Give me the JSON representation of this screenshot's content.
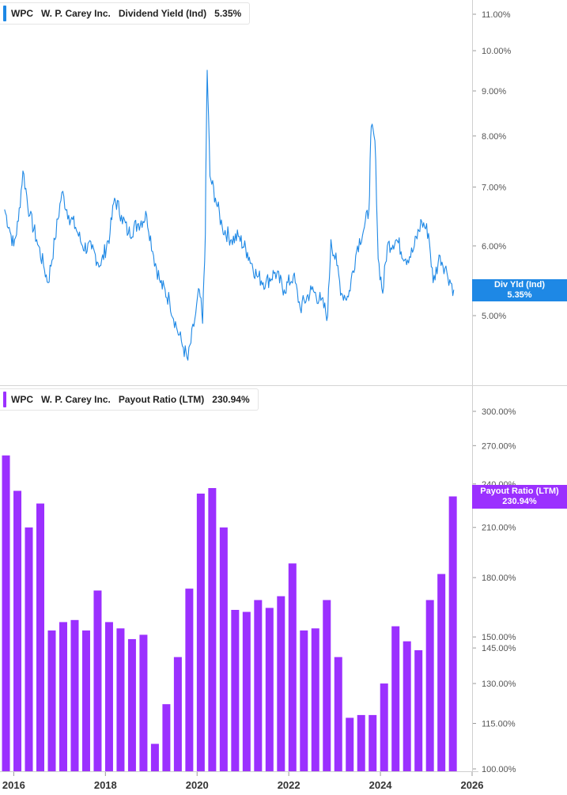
{
  "top_legend": {
    "ticker": "WPC",
    "company": "W. P. Carey Inc.",
    "metric": "Dividend Yield (Ind)",
    "value": "5.35%"
  },
  "bottom_legend": {
    "ticker": "WPC",
    "company": "W. P. Carey Inc.",
    "metric": "Payout Ratio (LTM)",
    "value": "230.94%"
  },
  "top_badge": {
    "label": "Div Yld (Ind)",
    "value": "5.35%"
  },
  "bottom_badge": {
    "label": "Payout Ratio (LTM)",
    "value": "230.94%"
  },
  "colors": {
    "yield_line": "#1e88e5",
    "payout_bar": "#9b30ff",
    "axis": "#9a9a9a"
  },
  "chart_data": [
    {
      "type": "line",
      "title": "WPC W. P. Carey Inc. Dividend Yield (Ind)",
      "scale": "log",
      "ylim": [
        4.3,
        11.6
      ],
      "yticks": [
        {
          "v": 11,
          "label": "11.00%"
        },
        {
          "v": 10,
          "label": "10.00%"
        },
        {
          "v": 9,
          "label": "9.00%"
        },
        {
          "v": 8,
          "label": "8.00%"
        },
        {
          "v": 7,
          "label": "7.00%"
        },
        {
          "v": 6,
          "label": "6.00%"
        },
        {
          "v": 5,
          "label": "5.00%"
        }
      ],
      "series": [
        {
          "name": "Div Yld (Ind)",
          "points": [
            [
              2015.8,
              6.6
            ],
            [
              2015.9,
              6.3
            ],
            [
              2016.0,
              6.0
            ],
            [
              2016.1,
              6.4
            ],
            [
              2016.2,
              7.3
            ],
            [
              2016.35,
              6.5
            ],
            [
              2016.5,
              6.1
            ],
            [
              2016.65,
              5.7
            ],
            [
              2016.75,
              5.45
            ],
            [
              2016.9,
              6.1
            ],
            [
              2017.05,
              6.9
            ],
            [
              2017.2,
              6.5
            ],
            [
              2017.35,
              6.3
            ],
            [
              2017.5,
              6.0
            ],
            [
              2017.7,
              5.95
            ],
            [
              2017.9,
              5.7
            ],
            [
              2018.1,
              6.2
            ],
            [
              2018.2,
              6.8
            ],
            [
              2018.35,
              6.5
            ],
            [
              2018.5,
              6.2
            ],
            [
              2018.7,
              6.35
            ],
            [
              2018.9,
              6.5
            ],
            [
              2019.05,
              5.85
            ],
            [
              2019.2,
              5.45
            ],
            [
              2019.4,
              5.2
            ],
            [
              2019.55,
              4.85
            ],
            [
              2019.7,
              4.6
            ],
            [
              2019.8,
              4.45
            ],
            [
              2019.95,
              4.95
            ],
            [
              2020.05,
              5.35
            ],
            [
              2020.12,
              4.9
            ],
            [
              2020.18,
              6.2
            ],
            [
              2020.22,
              9.5
            ],
            [
              2020.28,
              7.2
            ],
            [
              2020.4,
              6.8
            ],
            [
              2020.55,
              6.3
            ],
            [
              2020.75,
              6.1
            ],
            [
              2020.9,
              6.15
            ],
            [
              2021.1,
              5.9
            ],
            [
              2021.3,
              5.55
            ],
            [
              2021.5,
              5.45
            ],
            [
              2021.7,
              5.6
            ],
            [
              2021.9,
              5.35
            ],
            [
              2022.1,
              5.55
            ],
            [
              2022.25,
              5.1
            ],
            [
              2022.5,
              5.35
            ],
            [
              2022.7,
              5.2
            ],
            [
              2022.85,
              5.0
            ],
            [
              2022.92,
              6.1
            ],
            [
              2023.05,
              5.7
            ],
            [
              2023.15,
              5.3
            ],
            [
              2023.3,
              5.25
            ],
            [
              2023.5,
              6.0
            ],
            [
              2023.65,
              6.3
            ],
            [
              2023.75,
              6.6
            ],
            [
              2023.8,
              8.2
            ],
            [
              2023.88,
              7.9
            ],
            [
              2023.95,
              5.8
            ],
            [
              2024.05,
              5.3
            ],
            [
              2024.15,
              6.0
            ],
            [
              2024.35,
              6.1
            ],
            [
              2024.55,
              5.8
            ],
            [
              2024.7,
              5.9
            ],
            [
              2024.9,
              6.4
            ],
            [
              2025.05,
              6.2
            ],
            [
              2025.15,
              5.45
            ],
            [
              2025.3,
              5.85
            ],
            [
              2025.45,
              5.6
            ],
            [
              2025.6,
              5.35
            ]
          ]
        }
      ]
    },
    {
      "type": "bar",
      "title": "WPC W. P. Carey Inc. Payout Ratio (LTM)",
      "scale": "log",
      "ylim": [
        100,
        320
      ],
      "yticks": [
        {
          "v": 300,
          "label": "300.00%"
        },
        {
          "v": 270,
          "label": "270.00%"
        },
        {
          "v": 240,
          "label": "240.00%"
        },
        {
          "v": 210,
          "label": "210.00%"
        },
        {
          "v": 180,
          "label": "180.00%"
        },
        {
          "v": 150,
          "label": "150.00%"
        },
        {
          "v": 145,
          "label": "145.00%"
        },
        {
          "v": 130,
          "label": "130.00%"
        },
        {
          "v": 115,
          "label": "115.00%"
        },
        {
          "v": 100,
          "label": "100.00%"
        }
      ],
      "series": [
        {
          "name": "Payout Ratio (LTM)",
          "points": [
            [
              2015.83,
              262
            ],
            [
              2016.08,
              235
            ],
            [
              2016.33,
              210
            ],
            [
              2016.58,
              226
            ],
            [
              2016.83,
              153
            ],
            [
              2017.08,
              157
            ],
            [
              2017.33,
              158
            ],
            [
              2017.58,
              153
            ],
            [
              2017.83,
              173
            ],
            [
              2018.08,
              157
            ],
            [
              2018.33,
              154
            ],
            [
              2018.58,
              149
            ],
            [
              2018.83,
              151
            ],
            [
              2019.08,
              108
            ],
            [
              2019.33,
              122
            ],
            [
              2019.58,
              141
            ],
            [
              2019.83,
              174
            ],
            [
              2020.08,
              233
            ],
            [
              2020.33,
              237
            ],
            [
              2020.58,
              210
            ],
            [
              2020.83,
              163
            ],
            [
              2021.08,
              162
            ],
            [
              2021.33,
              168
            ],
            [
              2021.58,
              164
            ],
            [
              2021.83,
              170
            ],
            [
              2022.08,
              188
            ],
            [
              2022.33,
              153
            ],
            [
              2022.58,
              154
            ],
            [
              2022.83,
              168
            ],
            [
              2023.08,
              141
            ],
            [
              2023.33,
              117
            ],
            [
              2023.58,
              118
            ],
            [
              2023.83,
              118
            ],
            [
              2024.08,
              130
            ],
            [
              2024.33,
              155
            ],
            [
              2024.58,
              148
            ],
            [
              2024.83,
              144
            ],
            [
              2025.08,
              168
            ],
            [
              2025.33,
              182
            ],
            [
              2025.58,
              231
            ]
          ]
        }
      ]
    }
  ],
  "x_axis": {
    "ticks": [
      {
        "v": 2016,
        "label": "2016"
      },
      {
        "v": 2018,
        "label": "2018"
      },
      {
        "v": 2020,
        "label": "2020"
      },
      {
        "v": 2022,
        "label": "2022"
      },
      {
        "v": 2024,
        "label": "2024"
      },
      {
        "v": 2026,
        "label": "2026"
      }
    ],
    "range": [
      2015.7,
      2026.0
    ]
  }
}
